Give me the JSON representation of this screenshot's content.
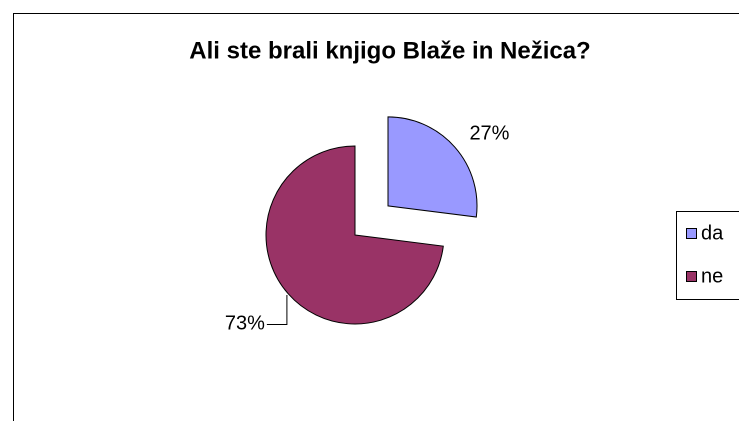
{
  "chart_data": {
    "type": "pie",
    "title": "Ali ste brali knjigo Blaže in Nežica?",
    "categories": [
      "da",
      "ne"
    ],
    "values": [
      27,
      73
    ],
    "value_labels": [
      "27%",
      "73%"
    ],
    "colors": [
      "#9999ff",
      "#993366"
    ],
    "explode": [
      true,
      false
    ],
    "legend": "right"
  }
}
